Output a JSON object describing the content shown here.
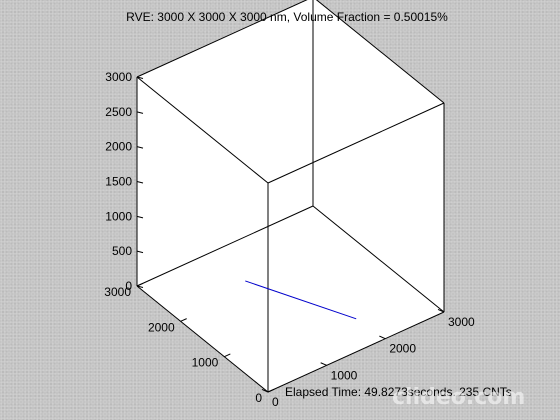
{
  "window": {
    "background_color": "#c4c4c4"
  },
  "chart_data": {
    "type": "line",
    "view": "3d",
    "title": "RVE: 3000 X 3000 X 3000 nm, Volume Fraction = 0.50015%",
    "xlabel": "",
    "ylabel": "",
    "zlabel": "",
    "xlim": [
      0,
      3000
    ],
    "ylim": [
      0,
      3000
    ],
    "zlim": [
      0,
      3000
    ],
    "x_ticks": [
      "0",
      "1000",
      "2000",
      "3000"
    ],
    "y_ticks": [
      "0",
      "1000",
      "2000",
      "3000"
    ],
    "z_ticks": [
      "0",
      "500",
      "1000",
      "1500",
      "2000",
      "2500",
      "3000"
    ],
    "grid": false,
    "box": true,
    "series": [
      {
        "color": "#0000cc",
        "points": [
          {
            "x": 1250,
            "y": 2200,
            "z": 0
          },
          {
            "x": 1950,
            "y": 600,
            "z": 0
          }
        ]
      }
    ],
    "annotation": "Elapsed Time: 49.8273seconds. 235 CNTs"
  },
  "watermark": {
    "text": "clideo.com"
  }
}
